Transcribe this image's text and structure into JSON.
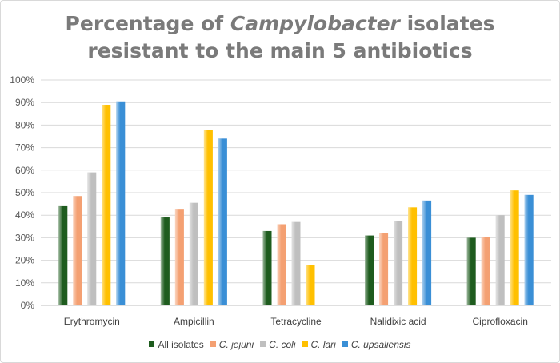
{
  "title": {
    "prefix": "Percentage of ",
    "italic": "Campylobacter",
    "suffix": " isolates",
    "line2": "resistant to the main 5 antibiotics"
  },
  "chart_data": {
    "type": "bar",
    "title": "Percentage of Campylobacter isolates resistant to the main 5 antibiotics",
    "categories": [
      "Erythromycin",
      "Ampicillin",
      "Tetracycline",
      "Nalidixic acid",
      "Ciprofloxacin"
    ],
    "series": [
      {
        "name": "All isolates",
        "italic": false,
        "color": "#1e5c1e",
        "values": [
          44,
          39,
          33,
          31,
          30
        ]
      },
      {
        "name": "C. jejuni",
        "italic": true,
        "color": "#f4a072",
        "values": [
          48.5,
          42.5,
          36,
          32,
          30.5
        ]
      },
      {
        "name": "C. coli",
        "italic": true,
        "color": "#bfbfbf",
        "values": [
          59,
          45.5,
          37,
          37.5,
          40
        ]
      },
      {
        "name": "C. lari",
        "italic": true,
        "color": "#ffc000",
        "values": [
          89,
          78,
          18,
          43.5,
          51
        ]
      },
      {
        "name": "C. upsaliensis",
        "italic": true,
        "color": "#3a8fd6",
        "values": [
          90.5,
          74,
          null,
          46.5,
          49
        ]
      }
    ],
    "yticks": [
      "0%",
      "10%",
      "20%",
      "30%",
      "40%",
      "50%",
      "60%",
      "70%",
      "80%",
      "90%",
      "100%"
    ],
    "ylim": [
      0,
      100
    ],
    "grid": true,
    "legend_position": "bottom"
  }
}
